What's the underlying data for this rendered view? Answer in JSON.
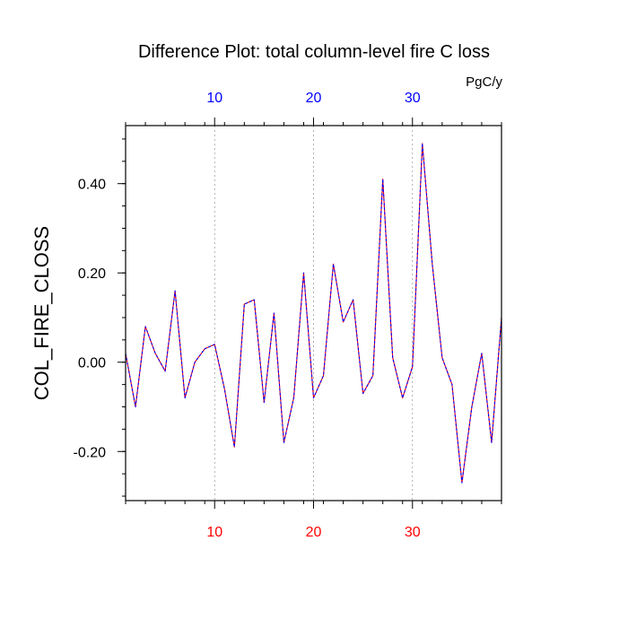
{
  "chart_data": {
    "type": "line",
    "title": "Difference Plot: total column-level fire C loss",
    "units": "PgC/y",
    "ylabel": "COL_FIRE_CLOSS",
    "xlabel": "",
    "xlim": [
      1,
      39
    ],
    "ylim": [
      -0.31,
      0.53
    ],
    "x_ticks": [
      10,
      20,
      30
    ],
    "x_tick_labels": [
      "10",
      "20",
      "30"
    ],
    "y_ticks": [
      -0.2,
      0.0,
      0.2,
      0.4
    ],
    "y_tick_labels": [
      "-0.20",
      "0.00",
      "0.20",
      "0.40"
    ],
    "grid": "x-dotted",
    "colors": {
      "top_axis_labels": "#0000ff",
      "bottom_axis_labels": "#ff0000",
      "series_a": "#ff0000",
      "series_b": "#0000ff"
    },
    "x": [
      1,
      2,
      3,
      4,
      5,
      6,
      7,
      8,
      9,
      10,
      11,
      12,
      13,
      14,
      15,
      16,
      17,
      18,
      19,
      20,
      21,
      22,
      23,
      24,
      25,
      26,
      27,
      28,
      29,
      30,
      31,
      32,
      33,
      34,
      35,
      36,
      37,
      38,
      39
    ],
    "series": [
      {
        "values": [
          0.02,
          -0.1,
          0.08,
          0.02,
          -0.02,
          0.16,
          -0.08,
          0.0,
          0.03,
          0.04,
          -0.06,
          -0.19,
          0.13,
          0.14,
          -0.09,
          0.11,
          -0.18,
          -0.08,
          0.2,
          -0.08,
          -0.03,
          0.22,
          0.09,
          0.14,
          -0.07,
          -0.03,
          0.41,
          0.01,
          -0.08,
          -0.01,
          0.49,
          0.22,
          0.01,
          -0.05,
          -0.27,
          -0.1,
          0.02,
          -0.18,
          0.1
        ]
      }
    ]
  }
}
